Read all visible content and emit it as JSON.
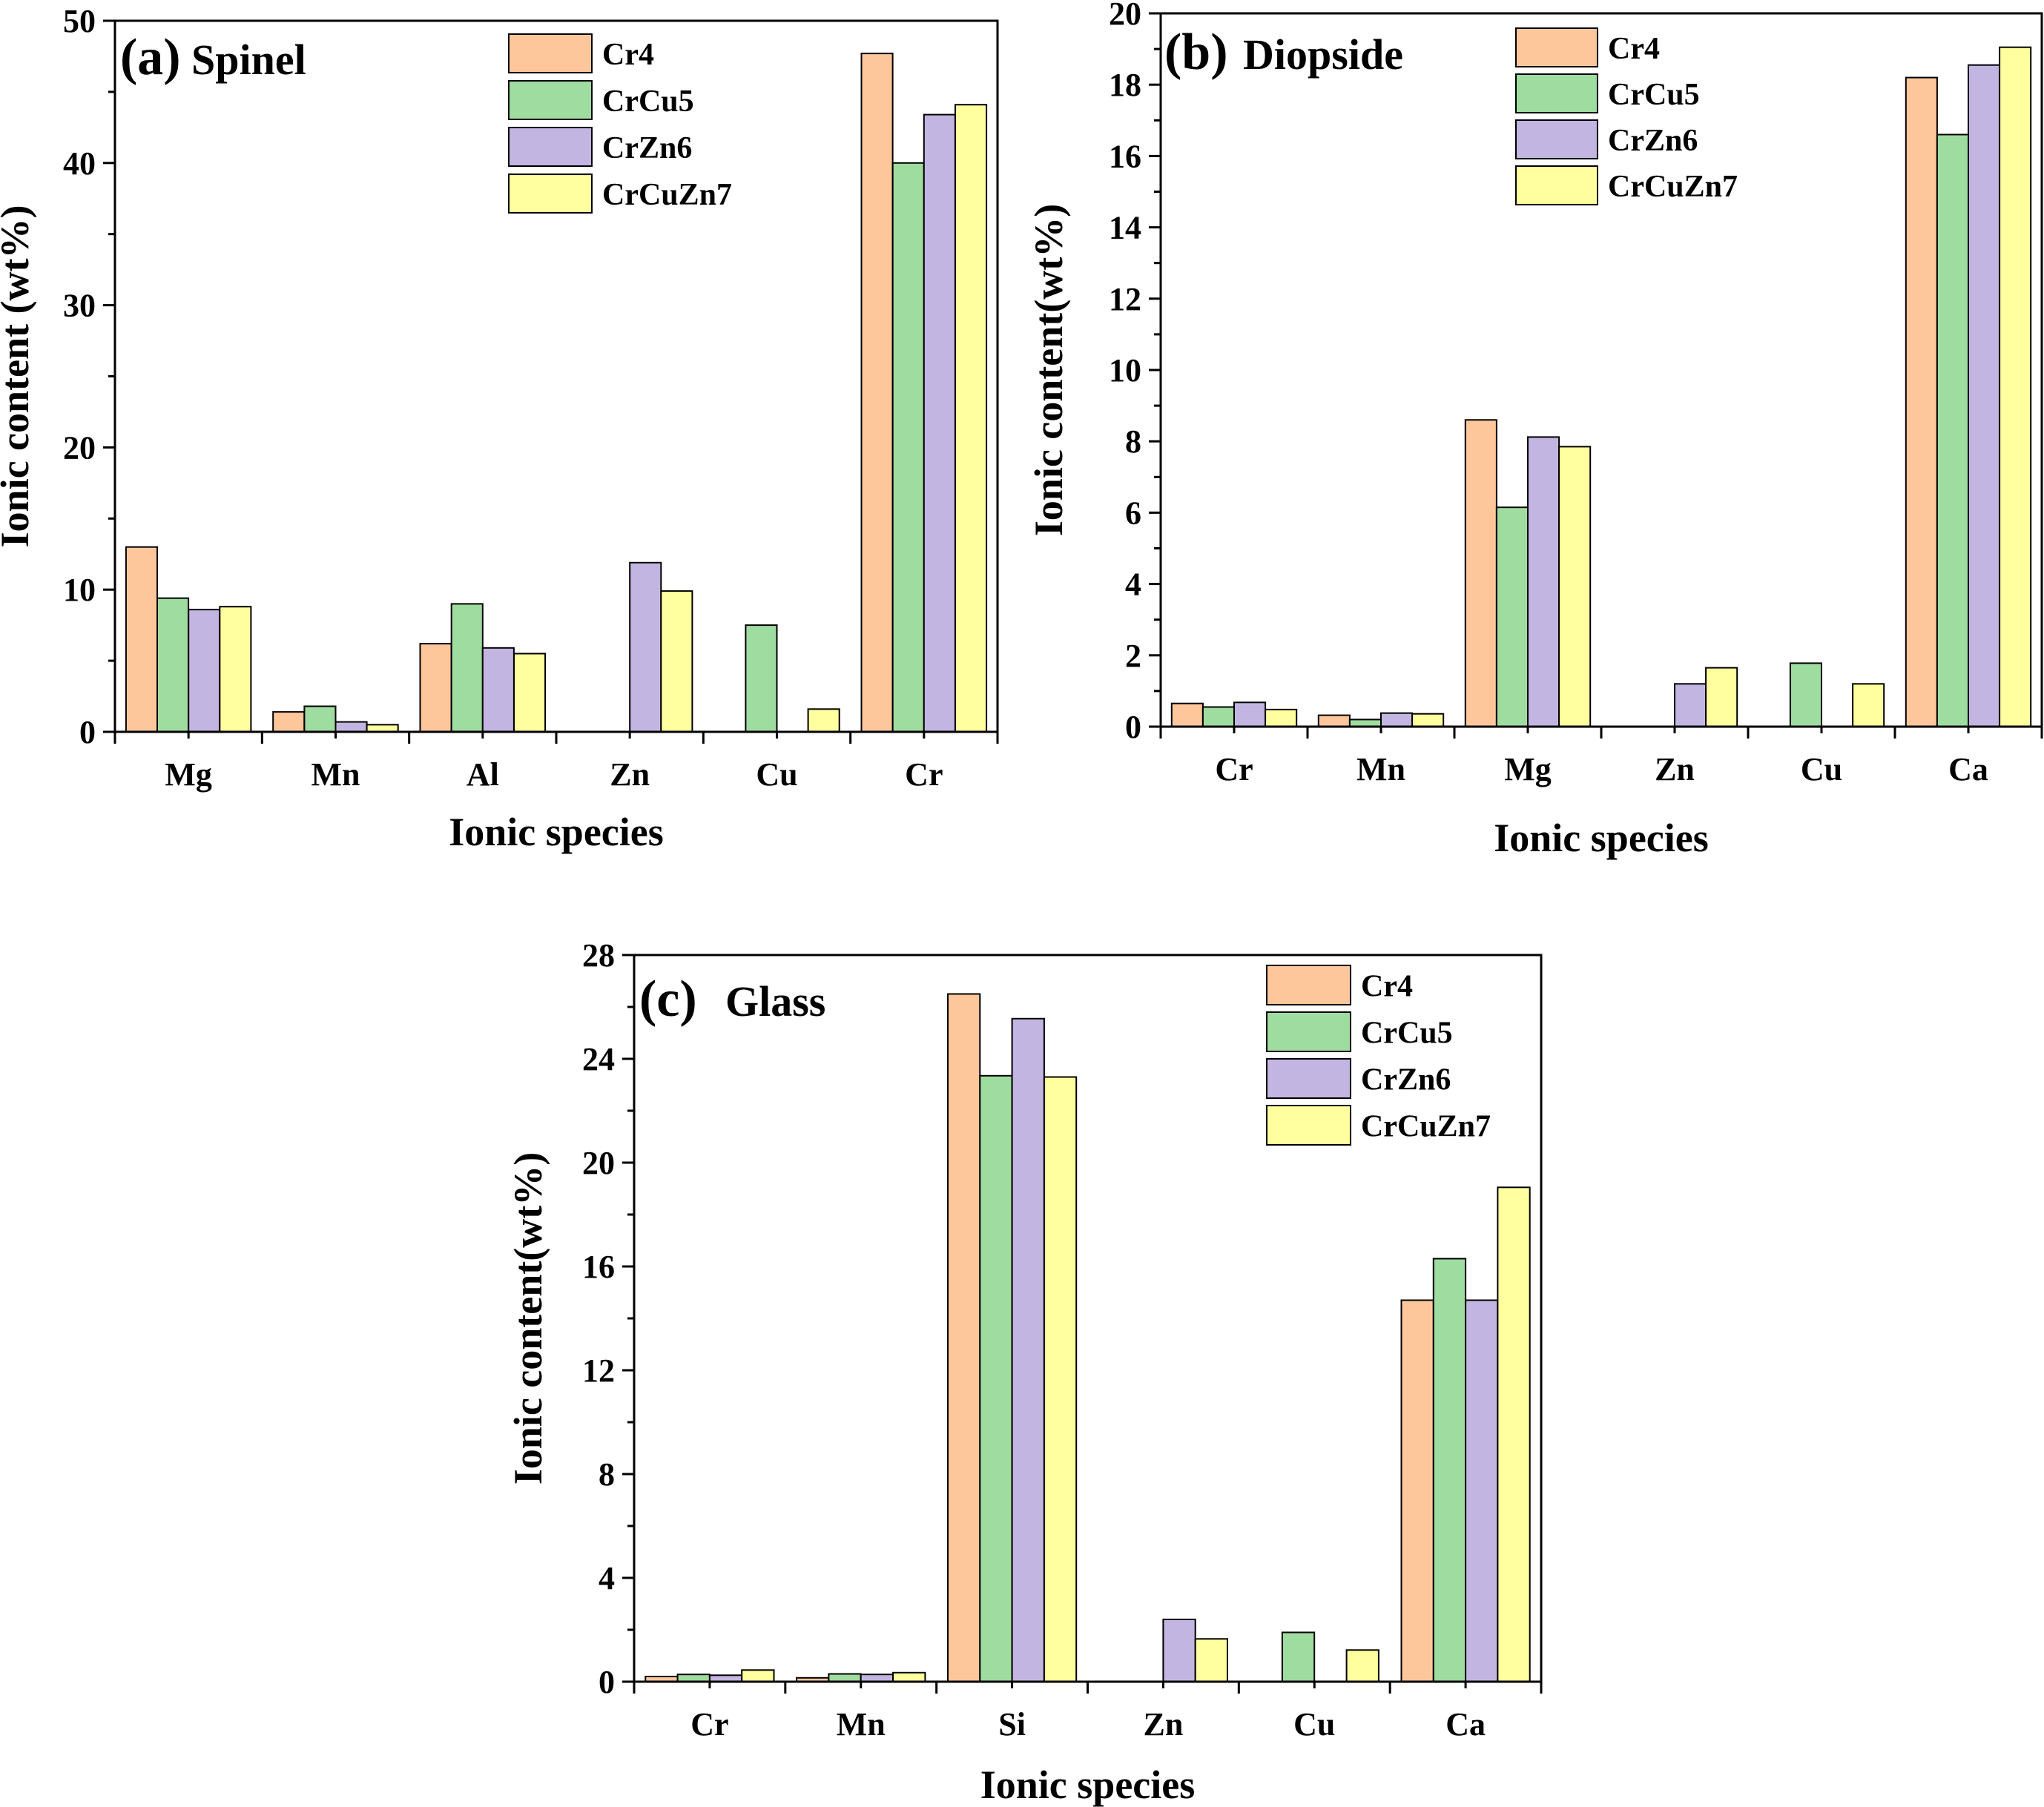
{
  "series_colors": {
    "Cr4": "#fdc79b",
    "CrCu5": "#9fdc9f",
    "CrZn6": "#c3b5e1",
    "CrCuZn7": "#ffffa0"
  },
  "chart_data": [
    {
      "type": "bar",
      "panel_tag": "(a)",
      "panel_name": "Spinel",
      "xlabel": "Ionic species",
      "ylabel": "Ionic content (wt%)",
      "categories": [
        "Mg",
        "Mn",
        "Al",
        "Zn",
        "Cu",
        "Cr"
      ],
      "ylim": [
        0,
        50
      ],
      "yticks": [
        0,
        10,
        20,
        30,
        40,
        50
      ],
      "ytick_labels": [
        "0",
        "10",
        "20",
        "30",
        "40",
        "50"
      ],
      "legend_position": "top-center",
      "series": [
        {
          "name": "Cr4",
          "values": [
            13.0,
            1.4,
            6.2,
            0,
            0,
            47.7
          ]
        },
        {
          "name": "CrCu5",
          "values": [
            9.4,
            1.8,
            9.0,
            0,
            7.5,
            40.0
          ]
        },
        {
          "name": "CrZn6",
          "values": [
            8.6,
            0.7,
            5.9,
            11.9,
            0,
            43.4
          ]
        },
        {
          "name": "CrCuZn7",
          "values": [
            8.8,
            0.5,
            5.5,
            9.9,
            1.6,
            44.1
          ]
        }
      ]
    },
    {
      "type": "bar",
      "panel_tag": "(b)",
      "panel_name": "Diopside",
      "xlabel": "Ionic species",
      "ylabel": "Ionic content(wt%)",
      "categories": [
        "Cr",
        "Mn",
        "Mg",
        "Zn",
        "Cu",
        "Ca"
      ],
      "ylim": [
        0,
        20
      ],
      "yticks": [
        0,
        2,
        4,
        6,
        8,
        10,
        12,
        14,
        16,
        18,
        20
      ],
      "ytick_labels": [
        "0",
        "2",
        "4",
        "6",
        "8",
        "10",
        "12",
        "14",
        "16",
        "18",
        "20"
      ],
      "legend_position": "top-center",
      "series": [
        {
          "name": "Cr4",
          "values": [
            0.65,
            0.32,
            8.6,
            0,
            0,
            18.2
          ]
        },
        {
          "name": "CrCu5",
          "values": [
            0.55,
            0.2,
            6.15,
            0,
            1.78,
            16.6
          ]
        },
        {
          "name": "CrZn6",
          "values": [
            0.68,
            0.38,
            8.12,
            1.2,
            0,
            18.55
          ]
        },
        {
          "name": "CrCuZn7",
          "values": [
            0.48,
            0.36,
            7.85,
            1.65,
            1.2,
            19.05
          ]
        }
      ]
    },
    {
      "type": "bar",
      "panel_tag": "(c)",
      "panel_name": "Glass",
      "xlabel": "Ionic species",
      "ylabel": "Ionic content(wt%)",
      "categories": [
        "Cr",
        "Mn",
        "Si",
        "Zn",
        "Cu",
        "Ca"
      ],
      "ylim": [
        0,
        28
      ],
      "yticks": [
        0,
        4,
        8,
        12,
        16,
        20,
        24,
        28
      ],
      "ytick_labels": [
        "0",
        "4",
        "8",
        "12",
        "16",
        "20",
        "24",
        "28"
      ],
      "legend_position": "top-right",
      "series": [
        {
          "name": "Cr4",
          "values": [
            0.2,
            0.15,
            26.5,
            0,
            0,
            14.7
          ]
        },
        {
          "name": "CrCu5",
          "values": [
            0.28,
            0.3,
            23.35,
            0,
            1.9,
            16.3
          ]
        },
        {
          "name": "CrZn6",
          "values": [
            0.25,
            0.28,
            25.55,
            2.4,
            0,
            14.7
          ]
        },
        {
          "name": "CrCuZn7",
          "values": [
            0.45,
            0.35,
            23.3,
            1.65,
            1.22,
            19.05
          ]
        }
      ]
    }
  ]
}
